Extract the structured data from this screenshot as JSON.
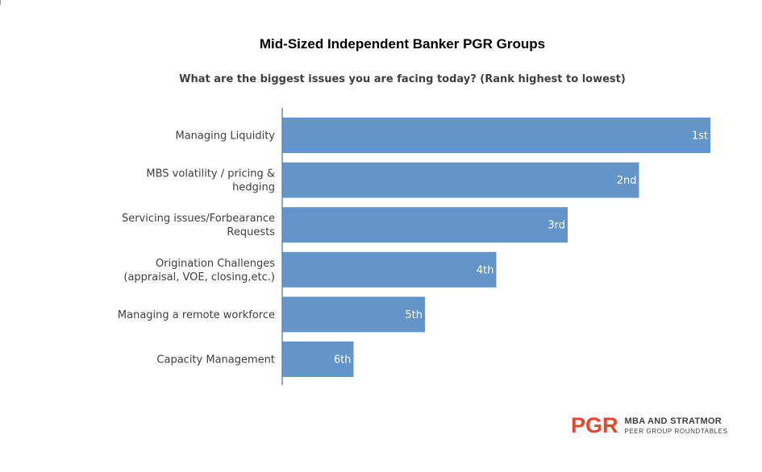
{
  "colors": {
    "bar": "#6495c8",
    "axis": "#5b8fc7",
    "logo": "#e8452c"
  },
  "logo": {
    "mark": "PGR",
    "line1": "MBA AND STRATMOR",
    "line2": "PEER GROUP ROUNDTABLES"
  },
  "chart_data": {
    "type": "bar",
    "orientation": "horizontal",
    "title": "Mid-Sized Independent Banker PGR Groups",
    "subtitle": "What are the biggest issues you are facing today? (Rank highest to lowest)",
    "categories": [
      [
        "Managing Liquidity"
      ],
      [
        "MBS volatility / pricing &",
        "hedging"
      ],
      [
        "Servicing issues/Forbearance",
        "Requests"
      ],
      [
        "Origination Challenges",
        "(appraisal, VOE, closing,etc.)"
      ],
      [
        "Managing a remote workforce"
      ],
      [
        "Capacity Management"
      ]
    ],
    "values": [
      6,
      5,
      4,
      3,
      2,
      1
    ],
    "data_labels": [
      "1st",
      "2nd",
      "3rd",
      "4th",
      "5th",
      "6th"
    ],
    "xlim": [
      0,
      6
    ],
    "grid": false,
    "legend": "none"
  }
}
